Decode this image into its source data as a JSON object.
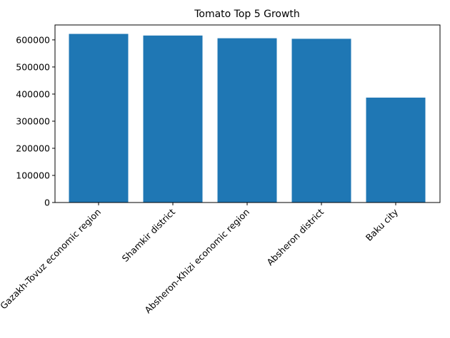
{
  "chart_data": {
    "type": "bar",
    "title": "Tomato Top 5 Growth",
    "xlabel": "",
    "ylabel": "",
    "categories": [
      "Gazakh-Tovuz economic region",
      "Shamkir district",
      "Absheron-Khizi economic region",
      "Absheron district",
      "Baku city"
    ],
    "values": [
      622000,
      616000,
      606000,
      604000,
      387000
    ],
    "ylim": [
      0,
      655000
    ],
    "yticks": [
      0,
      100000,
      200000,
      300000,
      400000,
      500000,
      600000
    ],
    "ytick_labels": [
      "0",
      "100000",
      "200000",
      "300000",
      "400000",
      "500000",
      "600000"
    ],
    "grid": false,
    "legend": "none",
    "bar_color": "#1f77b4"
  }
}
